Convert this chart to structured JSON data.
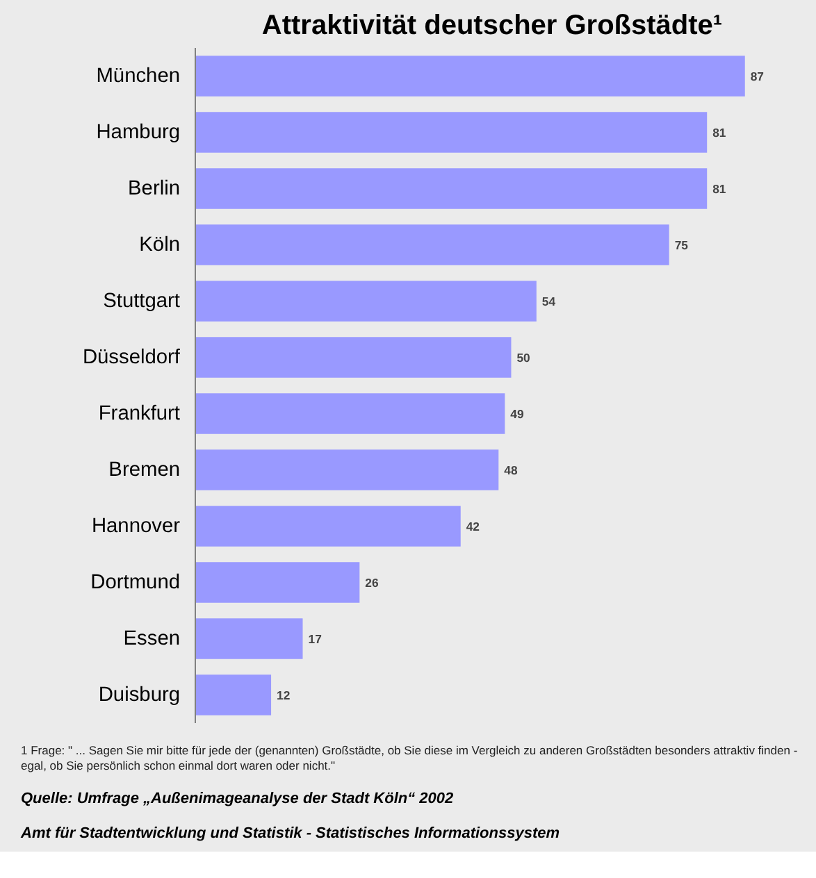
{
  "chart_data": {
    "type": "bar",
    "orientation": "horizontal",
    "title": "Attraktivität deutscher Großstädte¹",
    "categories": [
      "München",
      "Hamburg",
      "Berlin",
      "Köln",
      "Stuttgart",
      "Düsseldorf",
      "Frankfurt",
      "Bremen",
      "Hannover",
      "Dortmund",
      "Essen",
      "Duisburg"
    ],
    "values": [
      87,
      81,
      81,
      75,
      54,
      50,
      49,
      48,
      42,
      26,
      17,
      12
    ],
    "color": "#9999ff",
    "data_labels": true,
    "grid": false,
    "annotations": [
      "1  Frage: \" ... Sagen Sie mir bitte für jede der (genannten) Großstädte, ob Sie diese im Vergleich zu anderen Großstädten besonders attraktiv finden - egal, ob Sie persönlich schon einmal dort waren oder nicht.\"",
      "Quelle: Umfrage „Außenimageanalyse der Stadt Köln“ 2002",
      "Amt für Stadtentwicklung und Statistik - Statistisches Informationssystem"
    ]
  }
}
